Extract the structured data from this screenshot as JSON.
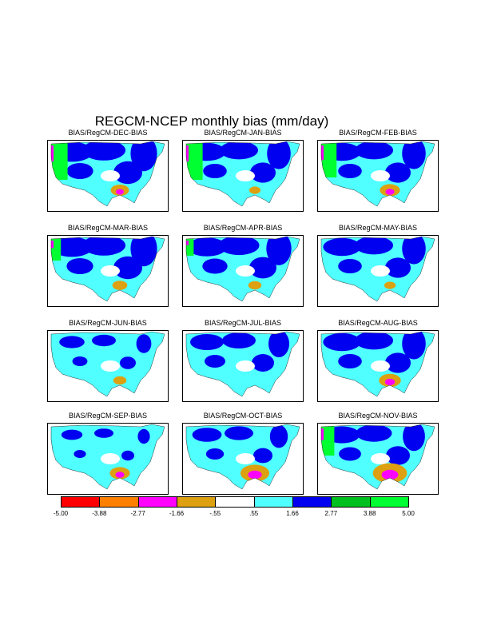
{
  "title": "REGCM-NCEP monthly bias (mm/day)",
  "chart_data": {
    "type": "heatmap",
    "title": "REGCM-NCEP monthly bias (mm/day)",
    "units": "mm/day",
    "panels": [
      {
        "label": "BIAS/RegCM-DEC-BIAS",
        "west_coast_green": 0.9,
        "dry_south": 0.25,
        "wet_east": 0.7
      },
      {
        "label": "BIAS/RegCM-JAN-BIAS",
        "west_coast_green": 0.9,
        "dry_south": 0.05,
        "wet_east": 0.6
      },
      {
        "label": "BIAS/RegCM-FEB-BIAS",
        "west_coast_green": 0.8,
        "dry_south": 0.3,
        "wet_east": 0.6
      },
      {
        "label": "BIAS/RegCM-MAR-BIAS",
        "west_coast_green": 0.3,
        "dry_south": 0.15,
        "wet_east": 0.7
      },
      {
        "label": "BIAS/RegCM-APR-BIAS",
        "west_coast_green": 0.1,
        "dry_south": 0.1,
        "wet_east": 0.65
      },
      {
        "label": "BIAS/RegCM-MAY-BIAS",
        "west_coast_green": 0.0,
        "dry_south": 0.05,
        "wet_east": 0.6
      },
      {
        "label": "BIAS/RegCM-JUN-BIAS",
        "west_coast_green": 0.0,
        "dry_south": 0.1,
        "wet_east": 0.3
      },
      {
        "label": "BIAS/RegCM-JUL-BIAS",
        "west_coast_green": 0.0,
        "dry_south": 0.0,
        "wet_east": 0.5
      },
      {
        "label": "BIAS/RegCM-AUG-BIAS",
        "west_coast_green": 0.0,
        "dry_south": 0.35,
        "wet_east": 0.6
      },
      {
        "label": "BIAS/RegCM-SEP-BIAS",
        "west_coast_green": 0.0,
        "dry_south": 0.3,
        "wet_east": 0.2
      },
      {
        "label": "BIAS/RegCM-OCT-BIAS",
        "west_coast_green": 0.0,
        "dry_south": 0.55,
        "wet_east": 0.4
      },
      {
        "label": "BIAS/RegCM-NOV-BIAS",
        "west_coast_green": 0.6,
        "dry_south": 0.7,
        "wet_east": 0.55
      }
    ],
    "colorbar": {
      "levels": [
        "-5.00",
        "-3.88",
        "-2.77",
        "-1.66",
        "-.55",
        ".55",
        "1.66",
        "2.77",
        "3.88",
        "5.00"
      ],
      "colors": [
        "#ff0000",
        "#ff8000",
        "#ff00ff",
        "#dca010",
        "#ffffff",
        "#50ffff",
        "#0000f0",
        "#00c020",
        "#00ff30"
      ]
    }
  }
}
